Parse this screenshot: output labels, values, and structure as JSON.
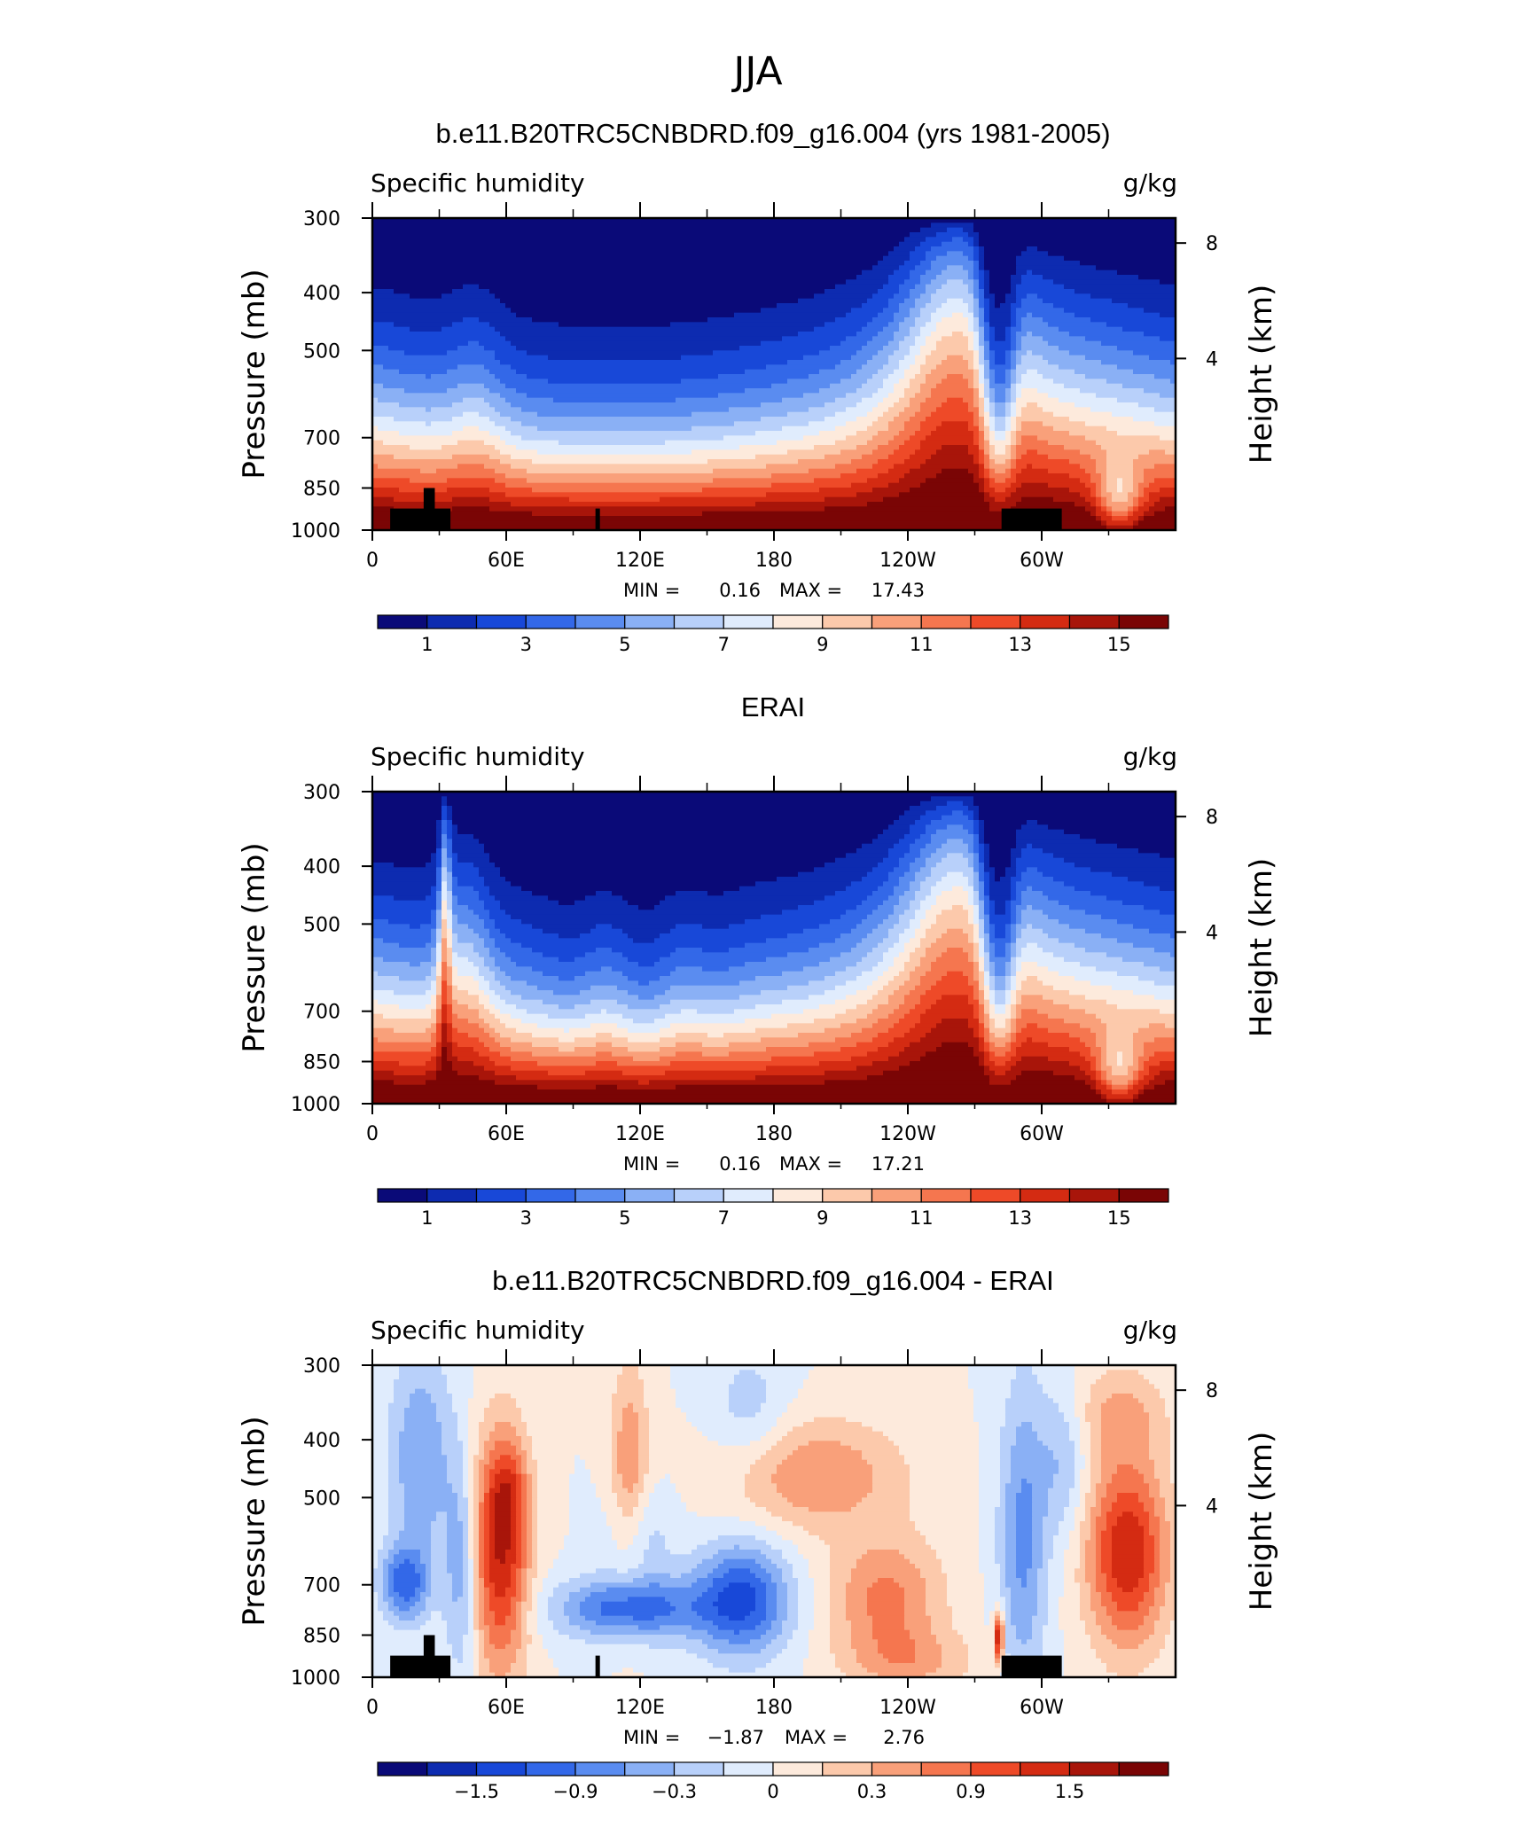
{
  "figure_title": "JJA",
  "chart_data": [
    {
      "type": "heatmap",
      "title": "b.e11.B20TRC5CNBDRD.f09_g16.004 (yrs 1981-2005)",
      "left_label": "Specific humidity",
      "right_label": "g/kg",
      "ylabel": "Pressure (mb)",
      "ylabel_right": "Height (km)",
      "y_ticks": [
        "300",
        "400",
        "500",
        "700",
        "850",
        "1000"
      ],
      "y_ticks_right": [
        "8",
        "4"
      ],
      "x_ticks": [
        "0",
        "60E",
        "120E",
        "180",
        "120W",
        "60W"
      ],
      "stats": {
        "min_label": "MIN =",
        "min": "0.16",
        "max_label": "MAX =",
        "max": "17.43"
      },
      "colorbar_labels": [
        "1",
        "3",
        "5",
        "7",
        "9",
        "11",
        "13",
        "15"
      ],
      "scale": "abs",
      "topography": true
    },
    {
      "type": "heatmap",
      "title": "ERAI",
      "left_label": "Specific humidity",
      "right_label": "g/kg",
      "ylabel": "Pressure (mb)",
      "ylabel_right": "Height (km)",
      "y_ticks": [
        "300",
        "400",
        "500",
        "700",
        "850",
        "1000"
      ],
      "y_ticks_right": [
        "8",
        "4"
      ],
      "x_ticks": [
        "0",
        "60E",
        "120E",
        "180",
        "120W",
        "60W"
      ],
      "stats": {
        "min_label": "MIN =",
        "min": "0.16",
        "max_label": "MAX =",
        "max": "17.21"
      },
      "colorbar_labels": [
        "1",
        "3",
        "5",
        "7",
        "9",
        "11",
        "13",
        "15"
      ],
      "scale": "abs",
      "topography": false
    },
    {
      "type": "heatmap",
      "title": "b.e11.B20TRC5CNBDRD.f09_g16.004 - ERAI",
      "left_label": "Specific humidity",
      "right_label": "g/kg",
      "ylabel": "Pressure (mb)",
      "ylabel_right": "Height (km)",
      "y_ticks": [
        "300",
        "400",
        "500",
        "700",
        "850",
        "1000"
      ],
      "y_ticks_right": [
        "8",
        "4"
      ],
      "x_ticks": [
        "0",
        "60E",
        "120E",
        "180",
        "120W",
        "60W"
      ],
      "stats": {
        "min_label": "MIN =",
        "min": "−1.87",
        "max_label": "MAX =",
        "max": "2.76"
      },
      "colorbar_labels": [
        "−1.5",
        "−0.9",
        "−0.3",
        "0",
        "0.3",
        "0.9",
        "1.5"
      ],
      "scale": "diff",
      "topography": true
    }
  ],
  "colormap": [
    "#0a0a78",
    "#0d2bb0",
    "#1848d8",
    "#3368e8",
    "#5a8cf0",
    "#8ab0f5",
    "#b8d0fa",
    "#e0ecfd",
    "#fdeadc",
    "#fcc9ab",
    "#f9a07a",
    "#f5764f",
    "#ee4a28",
    "#d42b12",
    "#a8150a",
    "#7a0505"
  ]
}
